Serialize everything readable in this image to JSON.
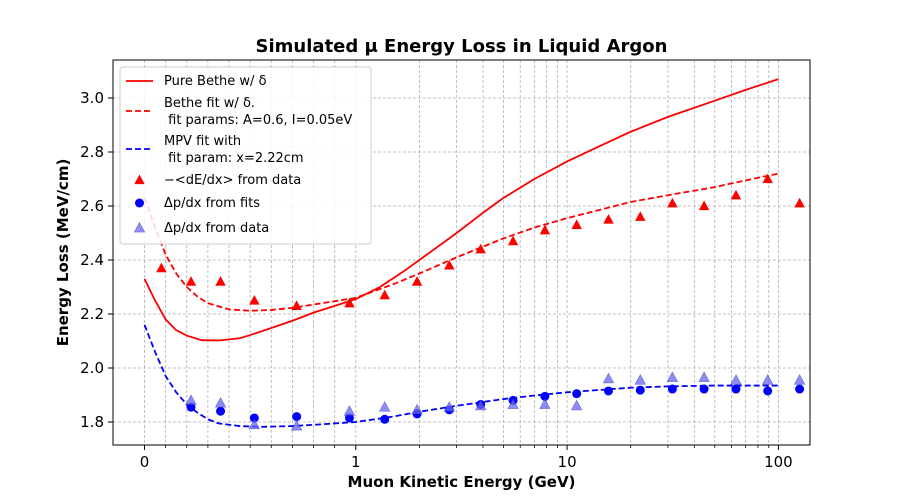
{
  "chart_data": {
    "type": "line",
    "title": "Simulated μ Energy Loss in Liquid Argon",
    "xlabel": "Muon Kinetic Energy (GeV)",
    "ylabel": "Energy Loss (MeV/cm)",
    "xscale": "symlog",
    "xlim": [
      -0.12,
      150
    ],
    "ylim": [
      1.71,
      3.13
    ],
    "xticks": [
      {
        "value": 0,
        "label": "0"
      },
      {
        "value": 1,
        "label": "1"
      },
      {
        "value": 10,
        "label": "10"
      },
      {
        "value": 100,
        "label": "100"
      }
    ],
    "yticks": [
      {
        "value": 1.8,
        "label": "1.8"
      },
      {
        "value": 2.0,
        "label": "2.0"
      },
      {
        "value": 2.2,
        "label": "2.2"
      },
      {
        "value": 2.4,
        "label": "2.4"
      },
      {
        "value": 2.6,
        "label": "2.6"
      },
      {
        "value": 2.8,
        "label": "2.8"
      },
      {
        "value": 3.0,
        "label": "3.0"
      }
    ],
    "grid": true,
    "legend_position": "top-left",
    "series": [
      {
        "name": "Pure Bethe w/ δ",
        "style": "solid",
        "color": "#ff0000",
        "points": [
          [
            0,
            2.33
          ],
          [
            0.05,
            2.25
          ],
          [
            0.1,
            2.18
          ],
          [
            0.15,
            2.14
          ],
          [
            0.2,
            2.12
          ],
          [
            0.27,
            2.103
          ],
          [
            0.35,
            2.102
          ],
          [
            0.45,
            2.11
          ],
          [
            0.5,
            2.122
          ],
          [
            0.6,
            2.148
          ],
          [
            0.7,
            2.175
          ],
          [
            0.8,
            2.205
          ],
          [
            1,
            2.255
          ],
          [
            1.3,
            2.3
          ],
          [
            1.7,
            2.36
          ],
          [
            2,
            2.4
          ],
          [
            3,
            2.5
          ],
          [
            4,
            2.575
          ],
          [
            5,
            2.63
          ],
          [
            7,
            2.7
          ],
          [
            10,
            2.765
          ],
          [
            15,
            2.83
          ],
          [
            20,
            2.875
          ],
          [
            30,
            2.93
          ],
          [
            50,
            2.99
          ],
          [
            70,
            3.03
          ],
          [
            100,
            3.07
          ]
        ]
      },
      {
        "name": "Bethe fit w/ δ.\n fit params: A=0.6, I=0.05eV",
        "style": "dashed",
        "color": "#ff0000",
        "points": [
          [
            0,
            2.63
          ],
          [
            0.05,
            2.52
          ],
          [
            0.1,
            2.42
          ],
          [
            0.15,
            2.35
          ],
          [
            0.2,
            2.3
          ],
          [
            0.25,
            2.265
          ],
          [
            0.3,
            2.24
          ],
          [
            0.4,
            2.217
          ],
          [
            0.5,
            2.212
          ],
          [
            0.6,
            2.215
          ],
          [
            0.7,
            2.223
          ],
          [
            0.8,
            2.235
          ],
          [
            1,
            2.26
          ],
          [
            1.5,
            2.31
          ],
          [
            2,
            2.35
          ],
          [
            3,
            2.41
          ],
          [
            5,
            2.48
          ],
          [
            7,
            2.52
          ],
          [
            10,
            2.555
          ],
          [
            15,
            2.59
          ],
          [
            20,
            2.615
          ],
          [
            30,
            2.64
          ],
          [
            50,
            2.67
          ],
          [
            70,
            2.695
          ],
          [
            100,
            2.72
          ]
        ]
      },
      {
        "name": "MPV fit with\n fit param: x=2.22cm",
        "style": "dashed",
        "color": "#0000ff",
        "points": [
          [
            0,
            2.16
          ],
          [
            0.05,
            2.06
          ],
          [
            0.1,
            1.97
          ],
          [
            0.15,
            1.91
          ],
          [
            0.2,
            1.865
          ],
          [
            0.25,
            1.835
          ],
          [
            0.3,
            1.81
          ],
          [
            0.35,
            1.795
          ],
          [
            0.45,
            1.785
          ],
          [
            0.55,
            1.782
          ],
          [
            0.7,
            1.785
          ],
          [
            0.85,
            1.792
          ],
          [
            1,
            1.8
          ],
          [
            1.5,
            1.82
          ],
          [
            2,
            1.838
          ],
          [
            3,
            1.86
          ],
          [
            5,
            1.885
          ],
          [
            7,
            1.898
          ],
          [
            10,
            1.91
          ],
          [
            15,
            1.92
          ],
          [
            20,
            1.927
          ],
          [
            30,
            1.932
          ],
          [
            50,
            1.935
          ],
          [
            100,
            1.935
          ]
        ]
      },
      {
        "name": "−<dE/dx> from data",
        "style": "marker-triangle",
        "color": "#ff0000",
        "points": [
          [
            0.08,
            2.37
          ],
          [
            0.22,
            2.32
          ],
          [
            0.36,
            2.32
          ],
          [
            0.52,
            2.25
          ],
          [
            0.72,
            2.23
          ],
          [
            0.97,
            2.24
          ],
          [
            1.37,
            2.27
          ],
          [
            1.95,
            2.32
          ],
          [
            2.77,
            2.38
          ],
          [
            3.9,
            2.44
          ],
          [
            5.55,
            2.47
          ],
          [
            7.85,
            2.51
          ],
          [
            11.1,
            2.53
          ],
          [
            15.7,
            2.55
          ],
          [
            22.2,
            2.56
          ],
          [
            31.5,
            2.61
          ],
          [
            44.5,
            2.6
          ],
          [
            63,
            2.64
          ],
          [
            89,
            2.7
          ],
          [
            126,
            2.61
          ]
        ]
      },
      {
        "name": "Δp/dx from fits",
        "style": "marker-circle",
        "color": "#0000ff",
        "points": [
          [
            0.22,
            1.855
          ],
          [
            0.36,
            1.84
          ],
          [
            0.52,
            1.815
          ],
          [
            0.72,
            1.82
          ],
          [
            0.97,
            1.815
          ],
          [
            1.37,
            1.81
          ],
          [
            1.95,
            1.83
          ],
          [
            2.77,
            1.845
          ],
          [
            3.9,
            1.865
          ],
          [
            5.55,
            1.88
          ],
          [
            7.85,
            1.895
          ],
          [
            11.1,
            1.905
          ],
          [
            15.7,
            1.915
          ],
          [
            22.2,
            1.918
          ],
          [
            31.5,
            1.922
          ],
          [
            44.5,
            1.922
          ],
          [
            63,
            1.922
          ],
          [
            89,
            1.915
          ],
          [
            126,
            1.922
          ]
        ]
      },
      {
        "name": "Δp/dx from data",
        "style": "marker-triangle-light",
        "color": "#6666ee",
        "points": [
          [
            0.22,
            1.88
          ],
          [
            0.36,
            1.87
          ],
          [
            0.52,
            1.79
          ],
          [
            0.72,
            1.785
          ],
          [
            0.97,
            1.84
          ],
          [
            1.37,
            1.855
          ],
          [
            1.95,
            1.845
          ],
          [
            2.77,
            1.855
          ],
          [
            3.9,
            1.86
          ],
          [
            5.55,
            1.865
          ],
          [
            7.85,
            1.865
          ],
          [
            11.1,
            1.86
          ],
          [
            15.7,
            1.96
          ],
          [
            22.2,
            1.955
          ],
          [
            31.5,
            1.965
          ],
          [
            44.5,
            1.965
          ],
          [
            63,
            1.955
          ],
          [
            89,
            1.955
          ],
          [
            126,
            1.955
          ]
        ]
      }
    ],
    "colors": {
      "red": "#ff0000",
      "blue": "#0000ff",
      "light_blue": "#6666ee",
      "grid": "#b0b0b0"
    }
  }
}
